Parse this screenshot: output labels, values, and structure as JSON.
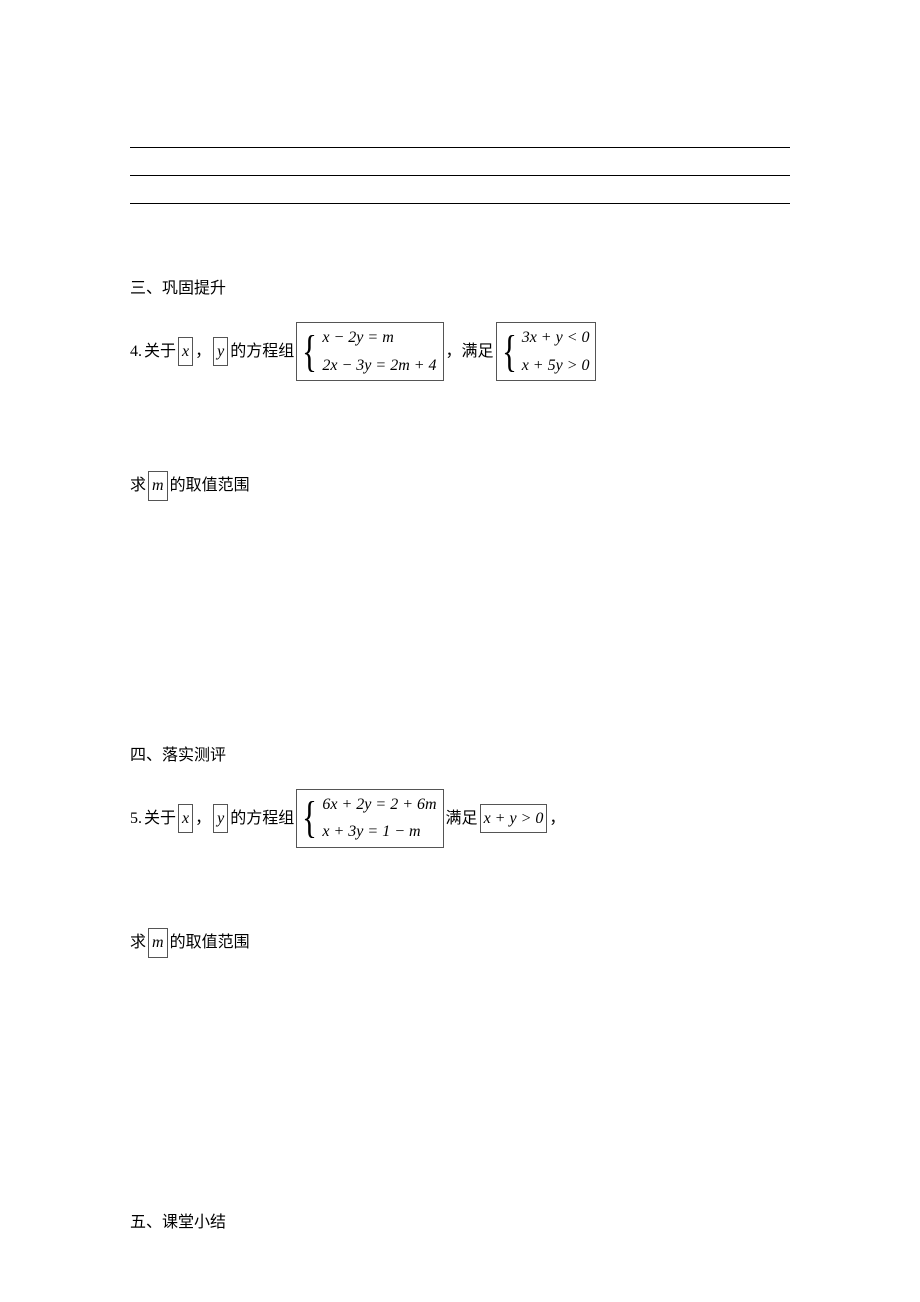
{
  "blank_lines": {
    "count": 3
  },
  "section3": {
    "heading": "三、巩固提升"
  },
  "problem4": {
    "num": "4.",
    "t1": " 关于",
    "var_x": "x",
    "comma": "，",
    "var_y": "y",
    "t2": "的方程组",
    "sys1_line1": "x − 2y = m",
    "sys1_line2": "2x − 3y = 2m + 4",
    "t3": " ，满足",
    "sys2_line1": "3x + y < 0",
    "sys2_line2": "x + 5y > 0",
    "sub_t1": "求",
    "var_m": "m",
    "sub_t2": "的取值范围"
  },
  "section4": {
    "heading": "四、落实测评"
  },
  "problem5": {
    "num": "5.",
    "t1": " 关于",
    "var_x": "x",
    "comma": "，",
    "var_y": "y",
    "t2": "的方程组",
    "sys_line1": "6x + 2y = 2 + 6m",
    "sys_line2": "x + 3y = 1 − m",
    "t3": "满足",
    "cond": "x + y > 0",
    "t4": "，",
    "sub_t1": "求",
    "var_m": "m",
    "sub_t2": "的取值范围"
  },
  "section5": {
    "heading": "五、课堂小结"
  },
  "style": {
    "text_color": "#000000",
    "border_color": "#555555",
    "background": "#ffffff",
    "body_font_size": 16,
    "brace_font_size": 44
  }
}
